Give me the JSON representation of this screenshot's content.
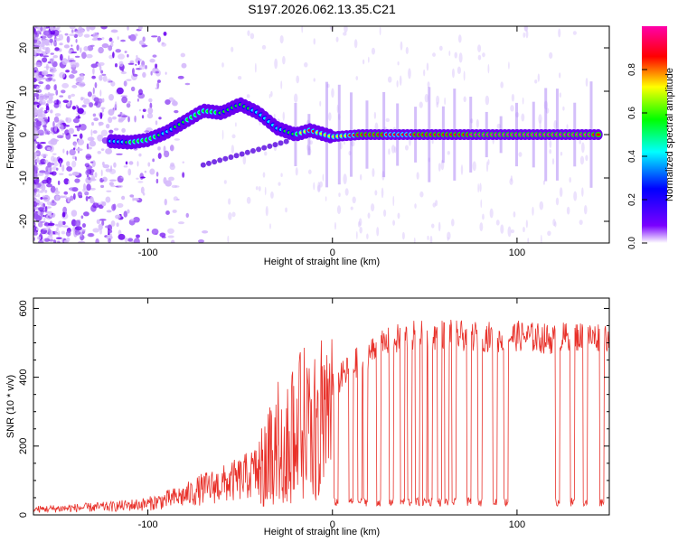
{
  "title": "S197.2026.062.13.35.C21",
  "chart_data": [
    {
      "type": "heatmap",
      "xlabel": "Height of straight line (km)",
      "ylabel": "Frequency (Hz)",
      "xlim": [
        -162,
        150
      ],
      "ylim": [
        -25,
        25
      ],
      "xticks": [
        -100,
        0,
        100
      ],
      "yticks": [
        -20,
        -10,
        0,
        10,
        20
      ],
      "colorbar": {
        "label": "Normalized spectral amplitude",
        "ticks": [
          "0.0",
          "0.2",
          "0.4",
          "0.6",
          "0.8"
        ],
        "range": [
          0,
          1
        ],
        "stops": [
          "#ffffff",
          "#7a00ff",
          "#0000ff",
          "#00ffff",
          "#00ff00",
          "#ffff00",
          "#ff0000",
          "#ff00aa"
        ]
      },
      "ridge": [
        {
          "x": -120,
          "f": -1.5,
          "a": 0.3
        },
        {
          "x": -110,
          "f": -1.8,
          "a": 0.45
        },
        {
          "x": -100,
          "f": -1.2,
          "a": 0.5
        },
        {
          "x": -90,
          "f": 0.5,
          "a": 0.4
        },
        {
          "x": -80,
          "f": 3.0,
          "a": 0.45
        },
        {
          "x": -70,
          "f": 5.5,
          "a": 0.5
        },
        {
          "x": -60,
          "f": 5.0,
          "a": 0.45
        },
        {
          "x": -50,
          "f": 7.0,
          "a": 0.45
        },
        {
          "x": -40,
          "f": 5.0,
          "a": 0.4
        },
        {
          "x": -30,
          "f": 1.5,
          "a": 0.4
        },
        {
          "x": -20,
          "f": 0.0,
          "a": 0.45
        },
        {
          "x": -12,
          "f": 1.0,
          "a": 0.75
        },
        {
          "x": 0,
          "f": -0.5,
          "a": 0.6
        },
        {
          "x": 15,
          "f": 0.0,
          "a": 0.8
        },
        {
          "x": 35,
          "f": 0.0,
          "a": 0.75
        },
        {
          "x": 65,
          "f": 0.0,
          "a": 0.8
        },
        {
          "x": 100,
          "f": 0.0,
          "a": 1.0
        },
        {
          "x": 125,
          "f": 0.0,
          "a": 0.9
        },
        {
          "x": 145,
          "f": 0.0,
          "a": 0.85
        }
      ]
    },
    {
      "type": "line",
      "xlabel": "Height of straight line (km)",
      "ylabel": "SNR (10 * v/v)",
      "xlim": [
        -162,
        150
      ],
      "ylim": [
        0,
        630
      ],
      "xticks": [
        -100,
        0,
        100
      ],
      "yticks": [
        0,
        200,
        400,
        600
      ],
      "color": "#e8312a",
      "series": [
        {
          "name": "SNR",
          "x": [
            -162,
            -140,
            -120,
            -100,
            -90,
            -80,
            -70,
            -60,
            -50,
            -40,
            -35,
            -30,
            -25,
            -20,
            -15,
            -10,
            -5,
            0,
            10,
            20,
            30,
            40,
            50,
            60,
            70,
            80,
            90,
            100,
            110,
            120,
            130,
            140,
            150
          ],
          "y": [
            20,
            25,
            30,
            40,
            55,
            70,
            95,
            110,
            130,
            160,
            210,
            260,
            280,
            300,
            330,
            350,
            370,
            370,
            430,
            470,
            500,
            520,
            520,
            525,
            520,
            520,
            515,
            520,
            515,
            510,
            520,
            515,
            520
          ]
        }
      ],
      "dropouts_x": [
        -5,
        2,
        10,
        15,
        18,
        25,
        32,
        38,
        42,
        46,
        50,
        53,
        58,
        62,
        66,
        74,
        80,
        88,
        94,
        122,
        130,
        137,
        146
      ]
    }
  ]
}
